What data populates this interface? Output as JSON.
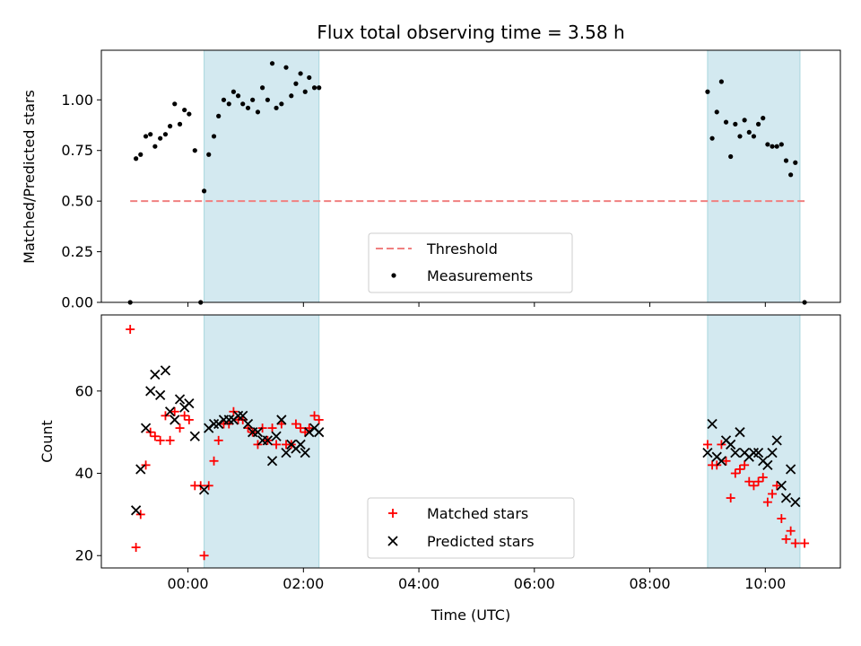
{
  "chart_data": [
    {
      "type": "scatter",
      "title": "Flux total observing time = 3.58 h",
      "xlabel": "",
      "ylabel": "Matched/Predicted stars",
      "x_unit": "hours (UTC)",
      "xlim": [
        -1.5,
        11.3
      ],
      "ylim": [
        0.0,
        1.245
      ],
      "y_ticks": [
        0.0,
        0.25,
        0.5,
        0.75,
        1.0
      ],
      "y_tick_labels": [
        "0.00",
        "0.25",
        "0.50",
        "0.75",
        "1.00"
      ],
      "x_ticks": [
        0,
        2,
        4,
        6,
        8,
        10
      ],
      "x_tick_labels": [],
      "shaded_spans": [
        [
          0.28,
          2.27
        ],
        [
          9.0,
          10.6
        ]
      ],
      "shade_color": "#d3e9f0",
      "threshold": {
        "name": "Threshold",
        "y": 0.5,
        "x_range": [
          -1.0,
          10.68
        ],
        "color": "#f08080"
      },
      "series": [
        {
          "name": "Measurements",
          "color": "#000000",
          "points": [
            [
              -1.0,
              0.0
            ],
            [
              -0.9,
              0.71
            ],
            [
              -0.82,
              0.73
            ],
            [
              -0.73,
              0.82
            ],
            [
              -0.65,
              0.83
            ],
            [
              -0.57,
              0.77
            ],
            [
              -0.48,
              0.81
            ],
            [
              -0.39,
              0.83
            ],
            [
              -0.31,
              0.87
            ],
            [
              -0.23,
              0.98
            ],
            [
              -0.14,
              0.88
            ],
            [
              -0.06,
              0.95
            ],
            [
              0.02,
              0.93
            ],
            [
              0.12,
              0.75
            ],
            [
              0.22,
              0.0
            ],
            [
              0.28,
              0.55
            ],
            [
              0.36,
              0.73
            ],
            [
              0.45,
              0.82
            ],
            [
              0.53,
              0.92
            ],
            [
              0.62,
              1.0
            ],
            [
              0.71,
              0.98
            ],
            [
              0.79,
              1.04
            ],
            [
              0.87,
              1.02
            ],
            [
              0.95,
              0.98
            ],
            [
              1.04,
              0.96
            ],
            [
              1.12,
              1.0
            ],
            [
              1.21,
              0.94
            ],
            [
              1.29,
              1.06
            ],
            [
              1.38,
              1.0
            ],
            [
              1.46,
              1.18
            ],
            [
              1.53,
              0.96
            ],
            [
              1.62,
              0.98
            ],
            [
              1.7,
              1.16
            ],
            [
              1.79,
              1.02
            ],
            [
              1.87,
              1.08
            ],
            [
              1.95,
              1.13
            ],
            [
              2.03,
              1.04
            ],
            [
              2.1,
              1.11
            ],
            [
              2.19,
              1.06
            ],
            [
              2.27,
              1.06
            ],
            [
              9.0,
              1.04
            ],
            [
              9.08,
              0.81
            ],
            [
              9.16,
              0.94
            ],
            [
              9.24,
              1.09
            ],
            [
              9.32,
              0.89
            ],
            [
              9.4,
              0.72
            ],
            [
              9.48,
              0.88
            ],
            [
              9.56,
              0.82
            ],
            [
              9.64,
              0.9
            ],
            [
              9.72,
              0.84
            ],
            [
              9.8,
              0.82
            ],
            [
              9.88,
              0.88
            ],
            [
              9.96,
              0.91
            ],
            [
              10.04,
              0.78
            ],
            [
              10.12,
              0.77
            ],
            [
              10.2,
              0.77
            ],
            [
              10.28,
              0.78
            ],
            [
              10.36,
              0.7
            ],
            [
              10.44,
              0.63
            ],
            [
              10.52,
              0.69
            ],
            [
              10.68,
              0.0
            ]
          ]
        }
      ],
      "legend": {
        "placement": "lower center",
        "entries": [
          "Threshold",
          "Measurements"
        ]
      }
    },
    {
      "type": "scatter",
      "title": "",
      "xlabel": "Time (UTC)",
      "ylabel": "Count",
      "x_unit": "hours (UTC)",
      "xlim": [
        -1.5,
        11.3
      ],
      "ylim": [
        17,
        78.5
      ],
      "y_ticks": [
        20,
        40,
        60
      ],
      "y_tick_labels": [
        "20",
        "40",
        "60"
      ],
      "x_ticks": [
        0,
        2,
        4,
        6,
        8,
        10
      ],
      "x_tick_labels": [
        "00:00",
        "02:00",
        "04:00",
        "06:00",
        "08:00",
        "10:00"
      ],
      "shaded_spans": [
        [
          0.28,
          2.27
        ],
        [
          9.0,
          10.6
        ]
      ],
      "shade_color": "#d3e9f0",
      "series": [
        {
          "name": "Matched stars",
          "marker": "plus",
          "color": "#ff0000",
          "points": [
            [
              -1.0,
              75
            ],
            [
              -0.9,
              22
            ],
            [
              -0.82,
              30
            ],
            [
              -0.73,
              42
            ],
            [
              -0.65,
              50
            ],
            [
              -0.57,
              49
            ],
            [
              -0.48,
              48
            ],
            [
              -0.39,
              54
            ],
            [
              -0.31,
              48
            ],
            [
              -0.23,
              55
            ],
            [
              -0.14,
              51
            ],
            [
              -0.06,
              54
            ],
            [
              0.02,
              53
            ],
            [
              0.12,
              37
            ],
            [
              0.22,
              37
            ],
            [
              0.28,
              20
            ],
            [
              0.36,
              37
            ],
            [
              0.45,
              43
            ],
            [
              0.53,
              48
            ],
            [
              0.62,
              52
            ],
            [
              0.71,
              52
            ],
            [
              0.79,
              55
            ],
            [
              0.87,
              53
            ],
            [
              0.95,
              53
            ],
            [
              1.04,
              51
            ],
            [
              1.12,
              50
            ],
            [
              1.21,
              47
            ],
            [
              1.29,
              51
            ],
            [
              1.38,
              48
            ],
            [
              1.46,
              51
            ],
            [
              1.53,
              47
            ],
            [
              1.62,
              52
            ],
            [
              1.7,
              47
            ],
            [
              1.79,
              47
            ],
            [
              1.87,
              52
            ],
            [
              1.95,
              51
            ],
            [
              2.03,
              50
            ],
            [
              2.1,
              51
            ],
            [
              2.19,
              54
            ],
            [
              2.27,
              53
            ],
            [
              9.0,
              47
            ],
            [
              9.08,
              42
            ],
            [
              9.16,
              42
            ],
            [
              9.24,
              47
            ],
            [
              9.32,
              43
            ],
            [
              9.4,
              34
            ],
            [
              9.48,
              40
            ],
            [
              9.56,
              41
            ],
            [
              9.64,
              42
            ],
            [
              9.72,
              38
            ],
            [
              9.8,
              37
            ],
            [
              9.88,
              38
            ],
            [
              9.96,
              39
            ],
            [
              10.04,
              33
            ],
            [
              10.12,
              35
            ],
            [
              10.2,
              37
            ],
            [
              10.28,
              29
            ],
            [
              10.36,
              24
            ],
            [
              10.44,
              26
            ],
            [
              10.52,
              23
            ],
            [
              10.68,
              23
            ]
          ]
        },
        {
          "name": "Predicted stars",
          "marker": "x",
          "color": "#000000",
          "points": [
            [
              -0.9,
              31
            ],
            [
              -0.82,
              41
            ],
            [
              -0.73,
              51
            ],
            [
              -0.65,
              60
            ],
            [
              -0.57,
              64
            ],
            [
              -0.48,
              59
            ],
            [
              -0.39,
              65
            ],
            [
              -0.31,
              55
            ],
            [
              -0.23,
              53
            ],
            [
              -0.14,
              58
            ],
            [
              -0.06,
              56
            ],
            [
              0.02,
              57
            ],
            [
              0.12,
              49
            ],
            [
              0.28,
              36
            ],
            [
              0.36,
              51
            ],
            [
              0.45,
              52
            ],
            [
              0.53,
              52
            ],
            [
              0.62,
              53
            ],
            [
              0.71,
              53
            ],
            [
              0.79,
              53
            ],
            [
              0.87,
              54
            ],
            [
              0.95,
              54
            ],
            [
              1.04,
              52
            ],
            [
              1.12,
              50
            ],
            [
              1.21,
              50
            ],
            [
              1.29,
              48
            ],
            [
              1.38,
              48
            ],
            [
              1.46,
              43
            ],
            [
              1.53,
              49
            ],
            [
              1.62,
              53
            ],
            [
              1.7,
              45
            ],
            [
              1.79,
              47
            ],
            [
              1.87,
              46
            ],
            [
              1.95,
              47
            ],
            [
              2.03,
              45
            ],
            [
              2.1,
              50
            ],
            [
              2.19,
              51
            ],
            [
              2.27,
              50
            ],
            [
              9.0,
              45
            ],
            [
              9.08,
              52
            ],
            [
              9.16,
              44
            ],
            [
              9.24,
              43
            ],
            [
              9.32,
              48
            ],
            [
              9.4,
              47
            ],
            [
              9.48,
              45
            ],
            [
              9.56,
              50
            ],
            [
              9.64,
              45
            ],
            [
              9.72,
              44
            ],
            [
              9.8,
              45
            ],
            [
              9.88,
              45
            ],
            [
              9.96,
              43
            ],
            [
              10.04,
              42
            ],
            [
              10.12,
              45
            ],
            [
              10.2,
              48
            ],
            [
              10.28,
              37
            ],
            [
              10.36,
              34
            ],
            [
              10.44,
              41
            ],
            [
              10.52,
              33
            ]
          ]
        }
      ],
      "legend": {
        "placement": "lower center",
        "entries": [
          "Matched stars",
          "Predicted stars"
        ]
      }
    }
  ]
}
